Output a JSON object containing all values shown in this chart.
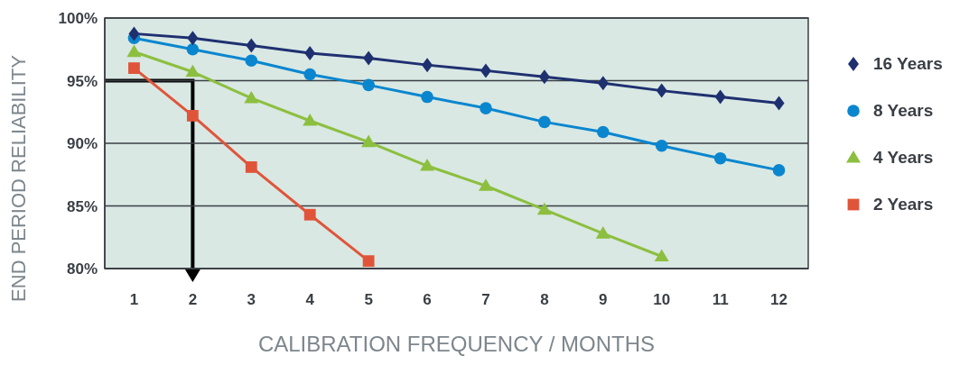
{
  "chart_data": {
    "type": "line",
    "xlabel": "CALIBRATION FREQUENCY / MONTHS",
    "ylabel": "END PERIOD RELIABILITY",
    "x": [
      1,
      2,
      3,
      4,
      5,
      6,
      7,
      8,
      9,
      10,
      11,
      12
    ],
    "xlim": [
      0.5,
      12.5
    ],
    "xticks": [
      1,
      2,
      3,
      4,
      5,
      6,
      7,
      8,
      9,
      10,
      11,
      12
    ],
    "ylim": [
      80,
      100
    ],
    "yticks": [
      {
        "value": 80,
        "label": "80%"
      },
      {
        "value": 85,
        "label": "85%"
      },
      {
        "value": 90,
        "label": "90%"
      },
      {
        "value": 95,
        "label": "95%"
      },
      {
        "value": 100,
        "label": "100%"
      }
    ],
    "grid": "y",
    "legend": "right",
    "series": [
      {
        "name": "16 Years",
        "color": "#1f3070",
        "marker": "diamond",
        "values": [
          98.75,
          98.4,
          97.8,
          97.2,
          96.8,
          96.25,
          95.8,
          95.3,
          94.8,
          94.2,
          93.7,
          93.2
        ]
      },
      {
        "name": "8 Years",
        "color": "#0a86cf",
        "marker": "circle",
        "values": [
          98.4,
          97.5,
          96.6,
          95.5,
          94.65,
          93.7,
          92.8,
          91.7,
          90.9,
          89.8,
          88.8,
          87.85
        ]
      },
      {
        "name": "4 Years",
        "color": "#8cbf3f",
        "marker": "triangle",
        "values": [
          97.3,
          95.7,
          93.6,
          91.8,
          90.1,
          88.2,
          86.6,
          84.7,
          82.8,
          80.97,
          null,
          null
        ]
      },
      {
        "name": "2 Years",
        "color": "#e0553a",
        "marker": "square",
        "values": [
          96.0,
          92.2,
          88.1,
          84.3,
          80.6,
          null,
          null,
          null,
          null,
          null,
          null,
          null
        ]
      }
    ]
  }
}
